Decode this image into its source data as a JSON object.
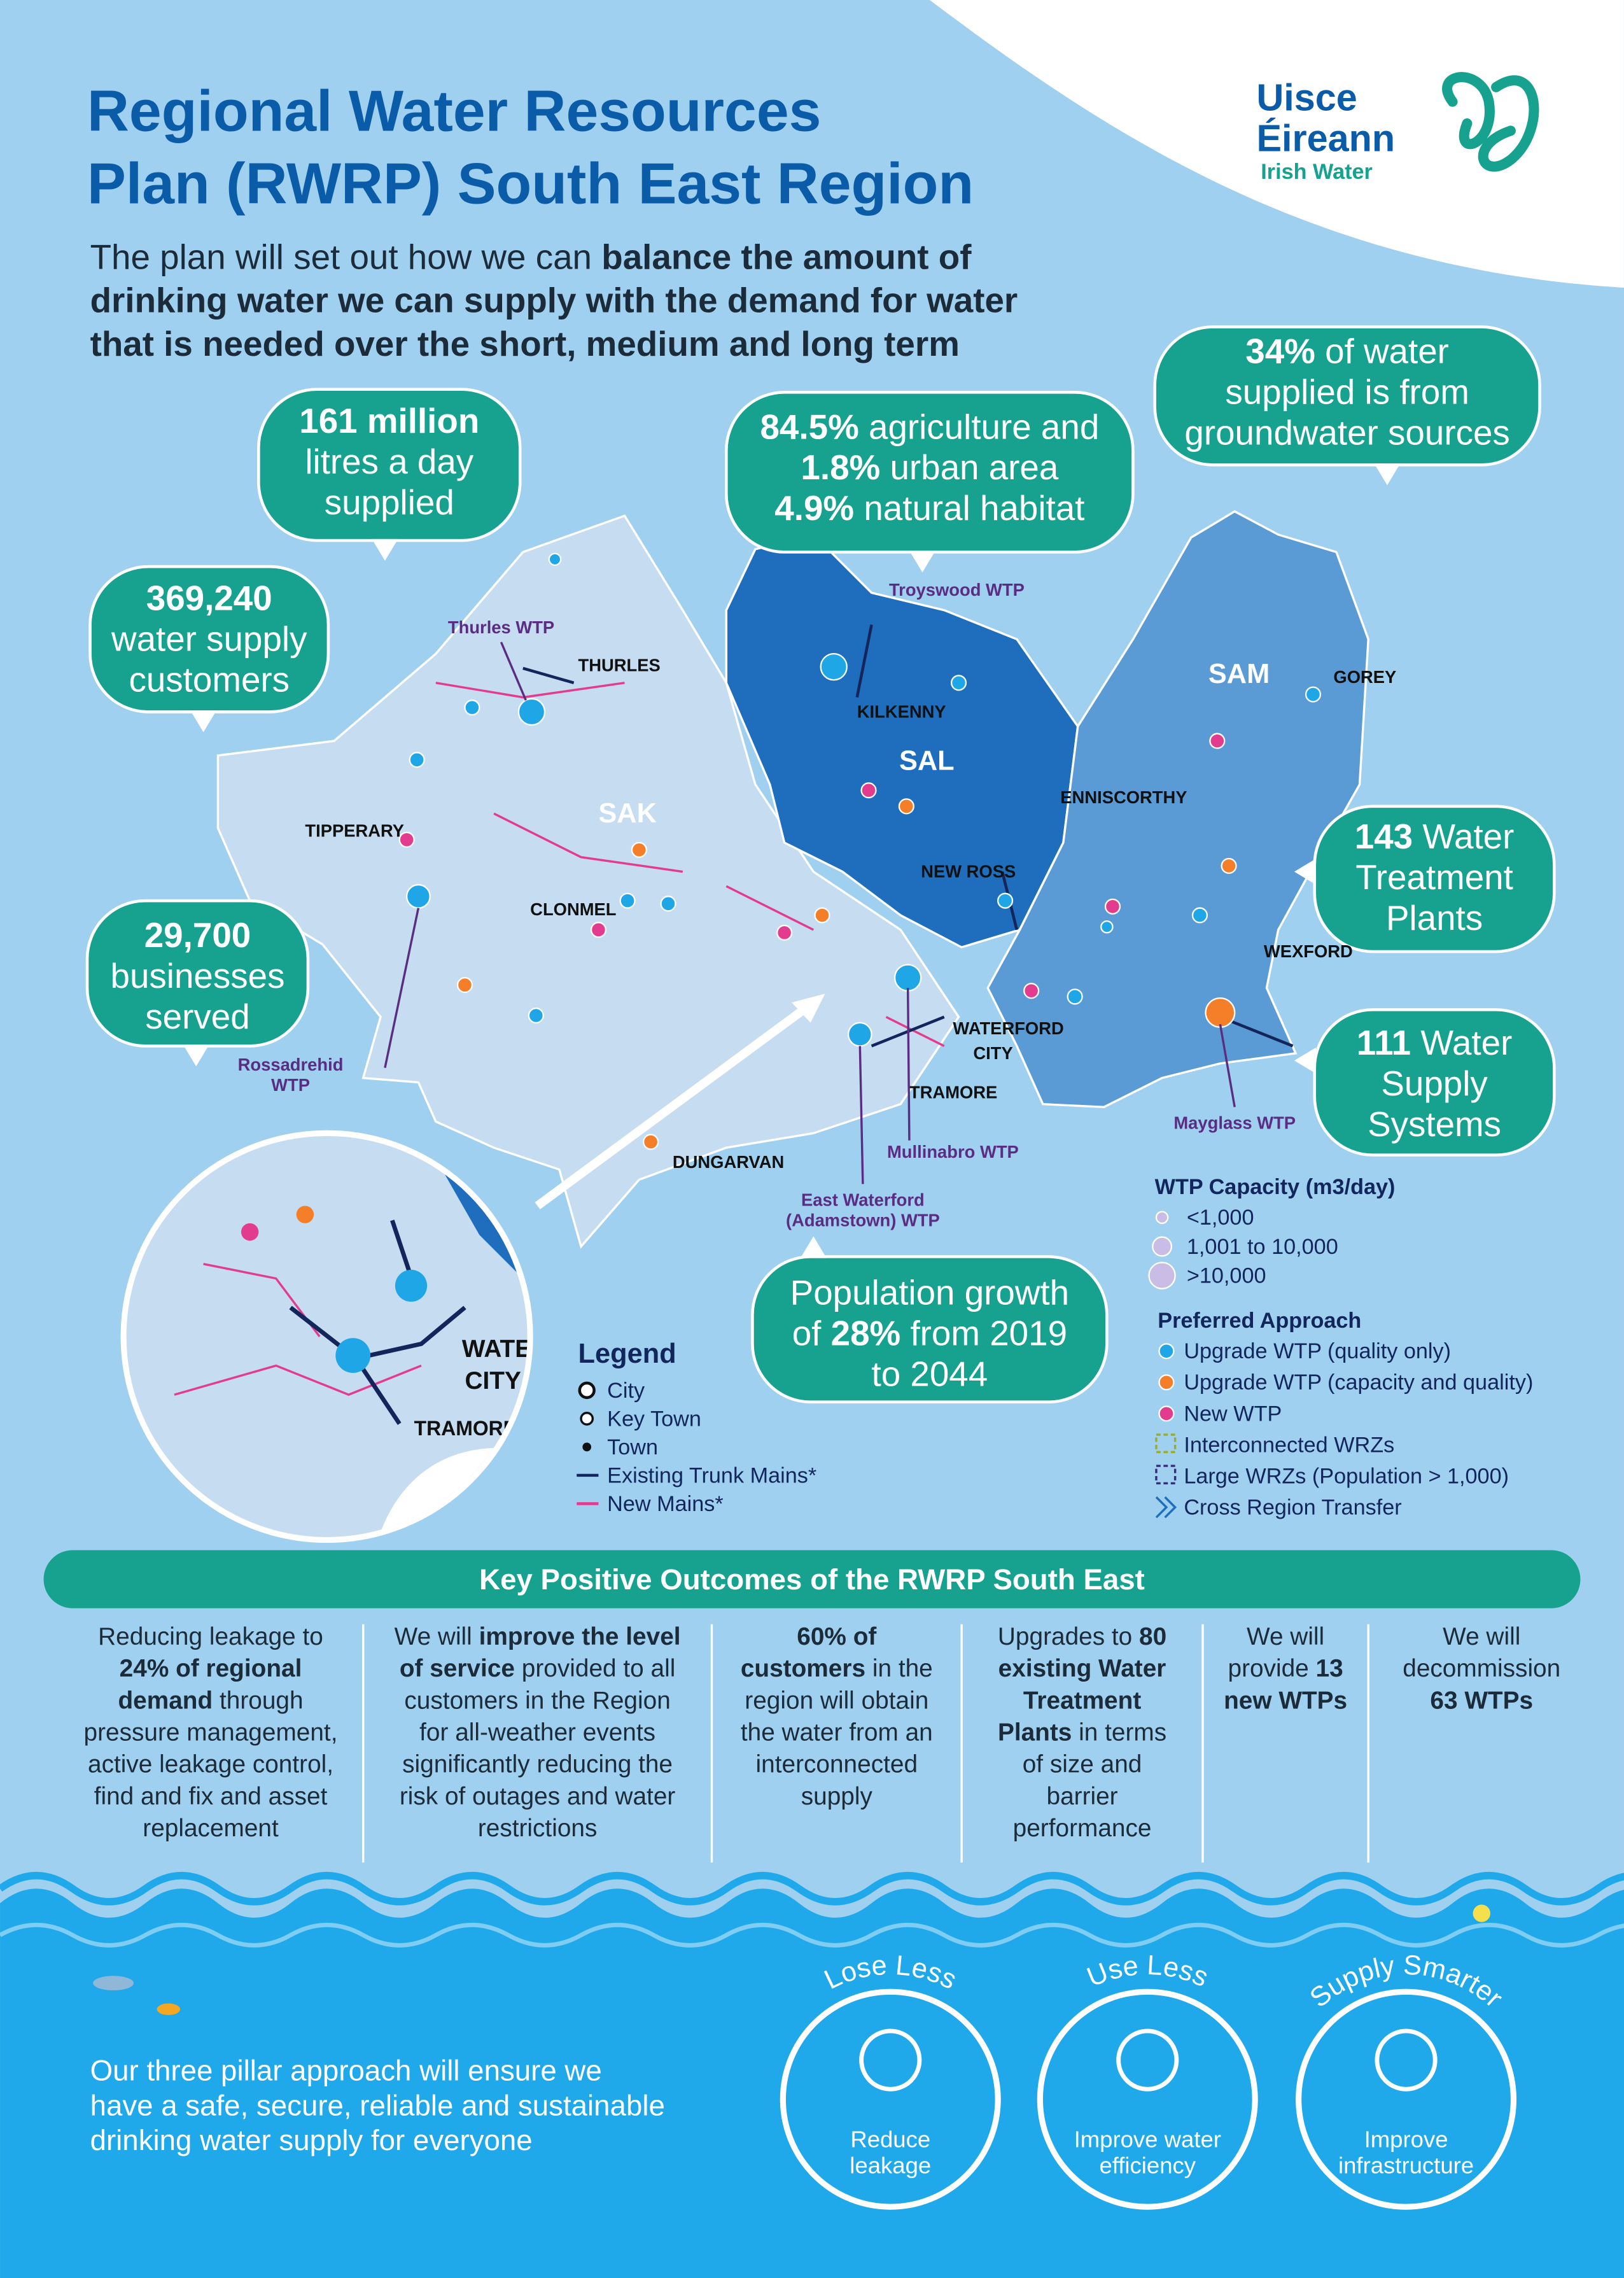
{
  "header": {
    "title": [
      "Regional Water Resources",
      "Plan (RWRP) South East Region"
    ],
    "intro": [
      [
        {
          "text": "The plan will set out how we can "
        },
        {
          "strong": "balance the amount of"
        }
      ],
      [
        {
          "strong": "drinking water we can supply with the demand for water"
        }
      ],
      [
        {
          "strong": "that is needed over the short, medium and long term"
        }
      ]
    ]
  },
  "logo": {
    "name": [
      "Uisce",
      "Éireann"
    ],
    "subtitle": "Irish Water"
  },
  "callouts": [
    {
      "lines": [
        [
          {
            "strong": "161 million"
          }
        ],
        [
          {
            "text": "litres a day"
          }
        ],
        [
          {
            "text": "supplied"
          }
        ]
      ]
    },
    {
      "lines": [
        [
          {
            "strong": "369,240"
          }
        ],
        [
          {
            "text": "water supply"
          }
        ],
        [
          {
            "text": "customers"
          }
        ]
      ]
    },
    {
      "lines": [
        [
          {
            "strong": "84.5%"
          },
          {
            "text": " agriculture and"
          }
        ],
        [
          {
            "strong": "1.8%"
          },
          {
            "text": " urban area"
          }
        ],
        [
          {
            "strong": "4.9%"
          },
          {
            "text": " natural habitat"
          }
        ]
      ]
    },
    {
      "lines": [
        [
          {
            "strong": "34%"
          },
          {
            "text": " of water"
          }
        ],
        [
          {
            "text": "supplied is from"
          }
        ],
        [
          {
            "text": "groundwater sources"
          }
        ]
      ]
    },
    {
      "lines": [
        [
          {
            "strong": "29,700"
          }
        ],
        [
          {
            "text": "businesses"
          }
        ],
        [
          {
            "text": "served"
          }
        ]
      ]
    },
    {
      "lines": [
        [
          {
            "strong": "143"
          },
          {
            "text": " Water"
          }
        ],
        [
          {
            "text": "Treatment"
          }
        ],
        [
          {
            "text": "Plants"
          }
        ]
      ]
    },
    {
      "lines": [
        [
          {
            "strong": "111"
          },
          {
            "text": " Water"
          }
        ],
        [
          {
            "text": "Supply"
          }
        ],
        [
          {
            "text": "Systems"
          }
        ]
      ]
    },
    {
      "lines": [
        [
          {
            "text": "Population growth"
          }
        ],
        [
          {
            "text": "of "
          },
          {
            "strong": "28%"
          },
          {
            "text": " from 2019"
          }
        ],
        [
          {
            "text": "to 2044"
          }
        ]
      ]
    }
  ],
  "map": {
    "regions": [
      "SAK",
      "SAL",
      "SAM"
    ],
    "places": [
      [
        "THURLES"
      ],
      [
        "KILKENNY"
      ],
      [
        "GOREY"
      ],
      [
        "TIPPERARY"
      ],
      [
        "ENNISCORTHY"
      ],
      [
        "CLONMEL"
      ],
      [
        "NEW ROSS"
      ],
      [
        "WEXFORD"
      ],
      [
        "WATERFORD",
        "CITY"
      ],
      [
        "TRAMORE"
      ],
      [
        "DUNGARVAN"
      ]
    ],
    "plants": [
      [
        "Thurles WTP"
      ],
      [
        "Troyswood WTP"
      ],
      [
        "Rossadrehid",
        "WTP"
      ],
      [
        "Mayglass WTP"
      ],
      [
        "Mullinabro WTP"
      ],
      [
        "East Waterford",
        "(Adamstown) WTP"
      ]
    ]
  },
  "legend": {
    "title": "Legend",
    "items": [
      "City",
      "Key Town",
      "Town",
      "Existing Trunk Mains*",
      "New Mains*"
    ]
  },
  "capacity": {
    "title": "WTP Capacity (m3/day)",
    "items": [
      "<1,000",
      "1,001 to 10,000",
      ">10,000"
    ]
  },
  "approach": {
    "title": "Preferred Approach",
    "items": [
      "Upgrade WTP (quality only)",
      "Upgrade WTP (capacity and quality)",
      "New WTP",
      "Interconnected WRZs",
      "Large WRZs (Population > 1,000)",
      "Cross Region Transfer"
    ]
  },
  "outcomes": {
    "title": "Key Positive Outcomes of the RWRP South East",
    "columns": [
      [
        [
          {
            "text": "Reducing leakage to"
          }
        ],
        [
          {
            "strong": "24% of regional"
          }
        ],
        [
          {
            "strong": "demand"
          },
          {
            "text": " through"
          }
        ],
        [
          {
            "text": "pressure management,"
          }
        ],
        [
          {
            "text": "active leakage control,"
          }
        ],
        [
          {
            "text": "find and fix and asset"
          }
        ],
        [
          {
            "text": "replacement"
          }
        ]
      ],
      [
        [
          {
            "text": "We will "
          },
          {
            "strong": "improve the level"
          }
        ],
        [
          {
            "strong": "of service"
          },
          {
            "text": " provided to all"
          }
        ],
        [
          {
            "text": "customers in the Region"
          }
        ],
        [
          {
            "text": "for all-weather events"
          }
        ],
        [
          {
            "text": "significantly reducing the"
          }
        ],
        [
          {
            "text": "risk of outages and water"
          }
        ],
        [
          {
            "text": "restrictions"
          }
        ]
      ],
      [
        [
          {
            "strong": "60% of"
          }
        ],
        [
          {
            "strong": "customers"
          },
          {
            "text": " in the"
          }
        ],
        [
          {
            "text": "region will obtain"
          }
        ],
        [
          {
            "text": "the water from an"
          }
        ],
        [
          {
            "text": "interconnected"
          }
        ],
        [
          {
            "text": "supply"
          }
        ]
      ],
      [
        [
          {
            "text": "Upgrades to "
          },
          {
            "strong": "80"
          }
        ],
        [
          {
            "strong": "existing Water"
          }
        ],
        [
          {
            "strong": "Treatment"
          }
        ],
        [
          {
            "strong": "Plants"
          },
          {
            "text": " in terms"
          }
        ],
        [
          {
            "text": "of size and"
          }
        ],
        [
          {
            "text": "barrier"
          }
        ],
        [
          {
            "text": "performance"
          }
        ]
      ],
      [
        [
          {
            "text": "We will"
          }
        ],
        [
          {
            "text": "provide "
          },
          {
            "strong": "13"
          }
        ],
        [
          {
            "strong": "new WTPs"
          }
        ]
      ],
      [
        [
          {
            "text": "We will"
          }
        ],
        [
          {
            "text": "decommission"
          }
        ],
        [
          {
            "strong": "63 WTPs"
          }
        ]
      ]
    ]
  },
  "pillars": [
    {
      "heading": "Lose Less",
      "caption": [
        "Reduce",
        "leakage"
      ]
    },
    {
      "heading": "Use Less",
      "caption": [
        "Improve water",
        "efficiency"
      ]
    },
    {
      "heading": "Supply Smarter",
      "caption": [
        "Improve",
        "infrastructure"
      ]
    }
  ],
  "footer": [
    "Our three pillar approach will ensure we",
    "have a safe, secure, reliable and sustainable",
    "drinking water supply for everyone"
  ]
}
